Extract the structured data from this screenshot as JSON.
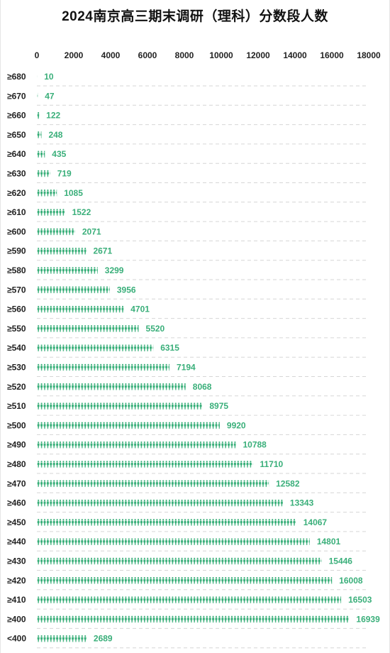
{
  "chart_data": {
    "type": "bar",
    "orientation": "horizontal",
    "title": "2024南京高三期末调研（理科）分数段人数",
    "categories": [
      "≥680",
      "≥670",
      "≥660",
      "≥650",
      "≥640",
      "≥630",
      "≥620",
      "≥610",
      "≥600",
      "≥590",
      "≥580",
      "≥570",
      "≥560",
      "≥550",
      "≥540",
      "≥530",
      "≥520",
      "≥510",
      "≥500",
      "≥490",
      "≥480",
      "≥470",
      "≥460",
      "≥450",
      "≥440",
      "≥430",
      "≥420",
      "≥410",
      "≥400",
      "<400"
    ],
    "values": [
      10,
      47,
      122,
      248,
      435,
      719,
      1085,
      1522,
      2071,
      2671,
      3299,
      3956,
      4701,
      5520,
      6315,
      7194,
      8068,
      8975,
      9920,
      10788,
      11710,
      12582,
      13343,
      14067,
      14801,
      15446,
      16008,
      16503,
      16939,
      2689
    ],
    "xlim": [
      0,
      18000
    ],
    "xticks": [
      "0",
      "2000",
      "4000",
      "6000",
      "8000",
      "10000",
      "12000",
      "14000",
      "16000",
      "18000"
    ],
    "grid": true,
    "axis_position": "top",
    "mark_style": "pictogram-person",
    "color": "#3aaf7a",
    "grid_color": "#d6d6d6"
  }
}
